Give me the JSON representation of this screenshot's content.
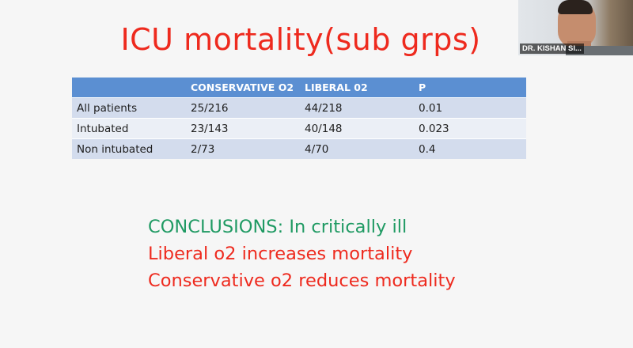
{
  "slide": {
    "title": "ICU mortality(sub grps)",
    "table": {
      "headers": [
        "",
        "CONSERVATIVE O2",
        "LIBERAL 02",
        "P"
      ],
      "rows": [
        [
          "All patients",
          "25/216",
          "44/218",
          "0.01"
        ],
        [
          "Intubated",
          "23/143",
          "40/148",
          "0.023"
        ],
        [
          "Non intubated",
          "2/73",
          "4/70",
          "0.4"
        ]
      ]
    },
    "conclusions": [
      "CONCLUSIONS:  In critically ill",
      "Liberal o2 increases mortality",
      "Conservative o2 reduces mortality"
    ]
  },
  "video_tile": {
    "participant_name": "DR. KISHAN SI..."
  },
  "colors": {
    "title": "#ee2a1e",
    "conclusion_heading": "#1f9a63",
    "table_header": "#5b8fd2"
  }
}
